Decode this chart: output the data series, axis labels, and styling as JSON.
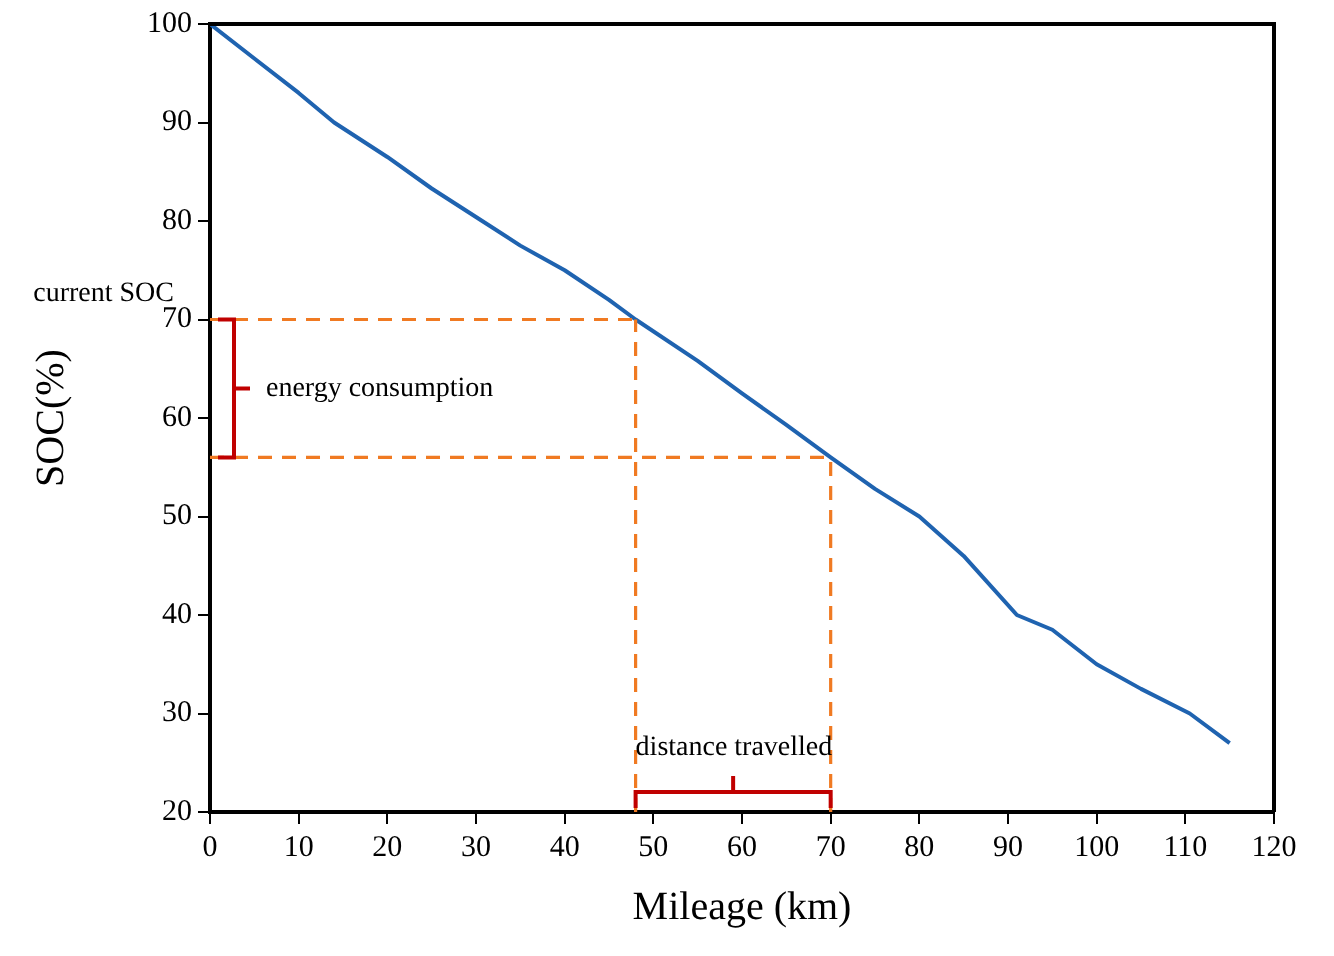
{
  "chart_data": {
    "type": "line",
    "xlabel": "Mileage (km)",
    "ylabel": "SOC(%)",
    "x": [
      0,
      5,
      10,
      14,
      20,
      25,
      30.7,
      35,
      40,
      45,
      48,
      55,
      60,
      65,
      70,
      75,
      80,
      85,
      91,
      95,
      100,
      105,
      110.5,
      115
    ],
    "series": [
      {
        "color": "#1f63b0",
        "values": [
          100,
          96.5,
          93,
          90,
          86.5,
          83.3,
          80,
          77.5,
          75,
          72,
          70,
          65.8,
          62.5,
          59.3,
          56,
          52.8,
          50,
          46,
          40,
          38.5,
          35,
          32.5,
          30,
          27
        ]
      }
    ],
    "xlim": [
      0,
      120
    ],
    "xticks": [
      0,
      10,
      20,
      30,
      40,
      50,
      60,
      70,
      80,
      90,
      100,
      110,
      120
    ],
    "ylim": [
      20,
      100
    ],
    "yticks": [
      20,
      30,
      40,
      50,
      60,
      70,
      80,
      90,
      100
    ],
    "grid": false,
    "legend": false,
    "marker": "none",
    "line_style": "solid",
    "ref_lines": [
      {
        "axis": "y",
        "value": 70,
        "label": "current SOC",
        "color": "#f07a22",
        "line_style": "dashed"
      },
      {
        "axis": "y",
        "value": 56,
        "label": null,
        "color": "#f07a22",
        "line_style": "dashed"
      },
      {
        "axis": "x",
        "value": 48,
        "label": null,
        "color": "#f07a22",
        "line_style": "dashed"
      },
      {
        "axis": "x",
        "value": 70,
        "label": null,
        "color": "#f07a22",
        "line_style": "dashed"
      }
    ],
    "annotations": [
      "energy consumption",
      "distance travelled"
    ]
  }
}
